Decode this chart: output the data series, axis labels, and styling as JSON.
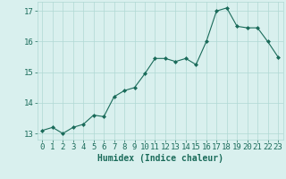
{
  "x": [
    0,
    1,
    2,
    3,
    4,
    5,
    6,
    7,
    8,
    9,
    10,
    11,
    12,
    13,
    14,
    15,
    16,
    17,
    18,
    19,
    20,
    21,
    22,
    23
  ],
  "y": [
    13.1,
    13.2,
    13.0,
    13.2,
    13.3,
    13.6,
    13.55,
    14.2,
    14.4,
    14.5,
    14.95,
    15.45,
    15.45,
    15.35,
    15.45,
    15.25,
    16.0,
    17.0,
    17.1,
    16.5,
    16.45,
    16.45,
    16.0,
    15.5
  ],
  "xlabel": "Humidex (Indice chaleur)",
  "ylim": [
    12.8,
    17.3
  ],
  "xlim": [
    -0.5,
    23.5
  ],
  "yticks": [
    13,
    14,
    15,
    16,
    17
  ],
  "xticks": [
    0,
    1,
    2,
    3,
    4,
    5,
    6,
    7,
    8,
    9,
    10,
    11,
    12,
    13,
    14,
    15,
    16,
    17,
    18,
    19,
    20,
    21,
    22,
    23
  ],
  "line_color": "#1a6b5a",
  "marker_color": "#1a6b5a",
  "bg_color": "#d9f0ee",
  "grid_color": "#b0d8d4",
  "tick_label_color": "#1a6b5a",
  "xlabel_color": "#1a6b5a",
  "xlabel_fontsize": 7,
  "tick_fontsize": 6.5
}
